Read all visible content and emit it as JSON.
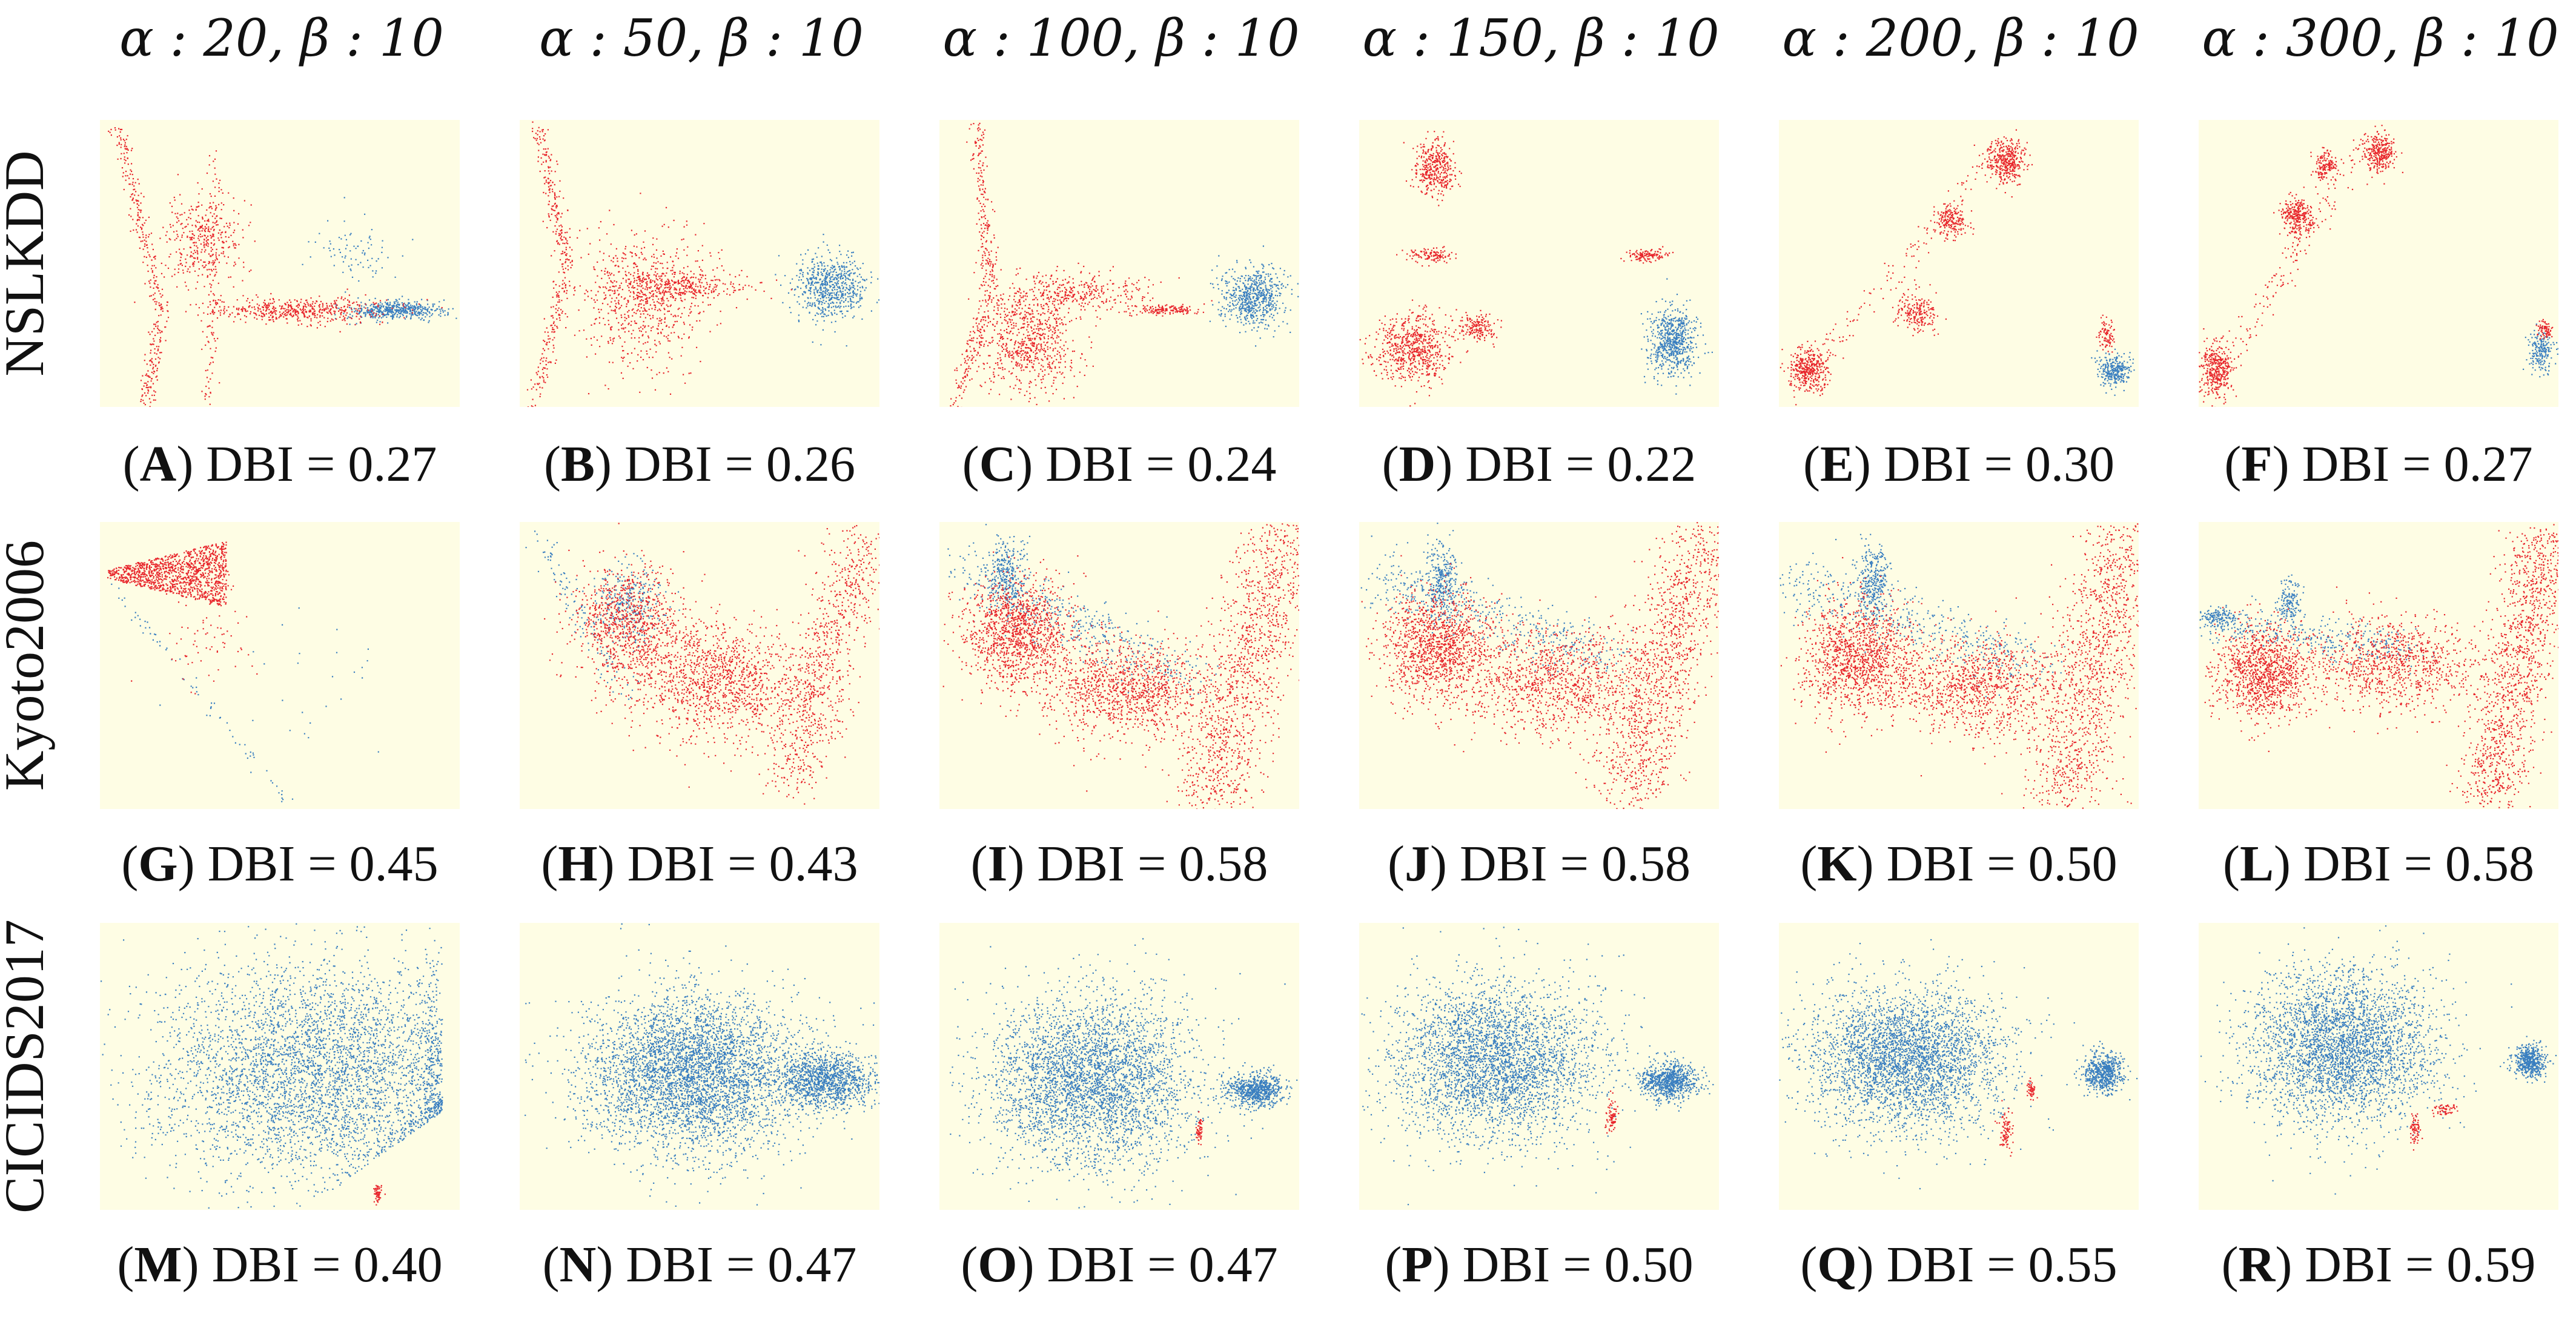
{
  "figure": {
    "columns": [
      {
        "title": "α : 20, β : 10"
      },
      {
        "title": "α : 50, β : 10"
      },
      {
        "title": "α : 100, β : 10"
      },
      {
        "title": "α : 150, β : 10"
      },
      {
        "title": "α : 200, β : 10"
      },
      {
        "title": "α : 300, β : 10"
      }
    ],
    "rows": [
      {
        "label": "NSLKDD"
      },
      {
        "label": "Kyoto2006"
      },
      {
        "label": "CICIDS2017"
      }
    ]
  },
  "colors": {
    "panel_bg": "#fefde4",
    "normal": "#3a7fc0",
    "attack": "#e8262c"
  },
  "chart_data": [
    {
      "type": "scatter",
      "letter": "A",
      "metric": "DBI",
      "value": "0.27",
      "dataset": "NSLKDD",
      "alpha": 20,
      "beta": 10
    },
    {
      "type": "scatter",
      "letter": "B",
      "metric": "DBI",
      "value": "0.26",
      "dataset": "NSLKDD",
      "alpha": 50,
      "beta": 10
    },
    {
      "type": "scatter",
      "letter": "C",
      "metric": "DBI",
      "value": "0.24",
      "dataset": "NSLKDD",
      "alpha": 100,
      "beta": 10
    },
    {
      "type": "scatter",
      "letter": "D",
      "metric": "DBI",
      "value": "0.22",
      "dataset": "NSLKDD",
      "alpha": 150,
      "beta": 10
    },
    {
      "type": "scatter",
      "letter": "E",
      "metric": "DBI",
      "value": "0.30",
      "dataset": "NSLKDD",
      "alpha": 200,
      "beta": 10
    },
    {
      "type": "scatter",
      "letter": "F",
      "metric": "DBI",
      "value": "0.27",
      "dataset": "NSLKDD",
      "alpha": 300,
      "beta": 10
    },
    {
      "type": "scatter",
      "letter": "G",
      "metric": "DBI",
      "value": "0.45",
      "dataset": "Kyoto2006",
      "alpha": 20,
      "beta": 10
    },
    {
      "type": "scatter",
      "letter": "H",
      "metric": "DBI",
      "value": "0.43",
      "dataset": "Kyoto2006",
      "alpha": 50,
      "beta": 10
    },
    {
      "type": "scatter",
      "letter": "I",
      "metric": "DBI",
      "value": "0.58",
      "dataset": "Kyoto2006",
      "alpha": 100,
      "beta": 10
    },
    {
      "type": "scatter",
      "letter": "J",
      "metric": "DBI",
      "value": "0.58",
      "dataset": "Kyoto2006",
      "alpha": 150,
      "beta": 10
    },
    {
      "type": "scatter",
      "letter": "K",
      "metric": "DBI",
      "value": "0.50",
      "dataset": "Kyoto2006",
      "alpha": 200,
      "beta": 10
    },
    {
      "type": "scatter",
      "letter": "L",
      "metric": "DBI",
      "value": "0.58",
      "dataset": "Kyoto2006",
      "alpha": 300,
      "beta": 10
    },
    {
      "type": "scatter",
      "letter": "M",
      "metric": "DBI",
      "value": "0.40",
      "dataset": "CICIDS2017",
      "alpha": 20,
      "beta": 10
    },
    {
      "type": "scatter",
      "letter": "N",
      "metric": "DBI",
      "value": "0.47",
      "dataset": "CICIDS2017",
      "alpha": 50,
      "beta": 10
    },
    {
      "type": "scatter",
      "letter": "O",
      "metric": "DBI",
      "value": "0.47",
      "dataset": "CICIDS2017",
      "alpha": 100,
      "beta": 10
    },
    {
      "type": "scatter",
      "letter": "P",
      "metric": "DBI",
      "value": "0.50",
      "dataset": "CICIDS2017",
      "alpha": 150,
      "beta": 10
    },
    {
      "type": "scatter",
      "letter": "Q",
      "metric": "DBI",
      "value": "0.55",
      "dataset": "CICIDS2017",
      "alpha": 200,
      "beta": 10
    },
    {
      "type": "scatter",
      "letter": "R",
      "metric": "DBI",
      "value": "0.59",
      "dataset": "CICIDS2017",
      "alpha": 300,
      "beta": 10
    }
  ]
}
